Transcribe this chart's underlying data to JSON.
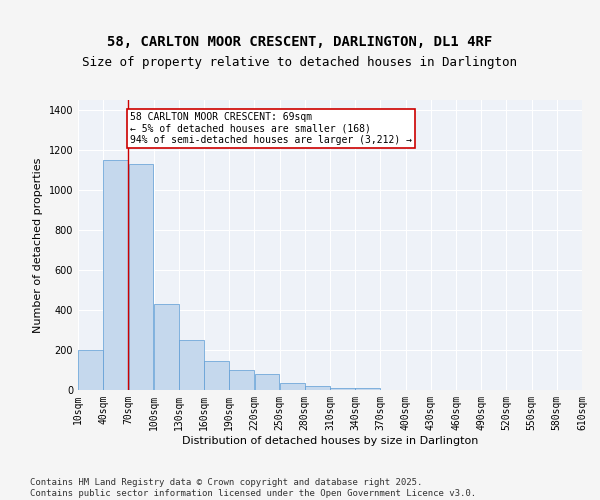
{
  "title_line1": "58, CARLTON MOOR CRESCENT, DARLINGTON, DL1 4RF",
  "title_line2": "Size of property relative to detached houses in Darlington",
  "xlabel": "Distribution of detached houses by size in Darlington",
  "ylabel": "Number of detached properties",
  "bar_color": "#c5d8ed",
  "bar_edge_color": "#5b9bd5",
  "background_color": "#eef2f8",
  "grid_color": "#ffffff",
  "annotation_box_color": "#cc0000",
  "annotation_text": "58 CARLTON MOOR CRESCENT: 69sqm\n← 5% of detached houses are smaller (168)\n94% of semi-detached houses are larger (3,212) →",
  "marker_x": 69,
  "marker_color": "#cc0000",
  "bin_edges": [
    10,
    40,
    70,
    100,
    130,
    160,
    190,
    220,
    250,
    280,
    310,
    340,
    370,
    400,
    430,
    460,
    490,
    520,
    550,
    580,
    610
  ],
  "bar_heights": [
    200,
    1150,
    1130,
    430,
    250,
    145,
    100,
    80,
    35,
    20,
    8,
    8,
    2,
    2,
    0,
    0,
    1,
    0,
    0,
    0
  ],
  "ylim": [
    0,
    1450
  ],
  "xlim": [
    10,
    610
  ],
  "yticks": [
    0,
    200,
    400,
    600,
    800,
    1000,
    1200,
    1400
  ],
  "footer_text": "Contains HM Land Registry data © Crown copyright and database right 2025.\nContains public sector information licensed under the Open Government Licence v3.0.",
  "title_fontsize": 10,
  "subtitle_fontsize": 9,
  "axis_label_fontsize": 8,
  "tick_fontsize": 7,
  "annotation_fontsize": 7,
  "footer_fontsize": 6.5
}
